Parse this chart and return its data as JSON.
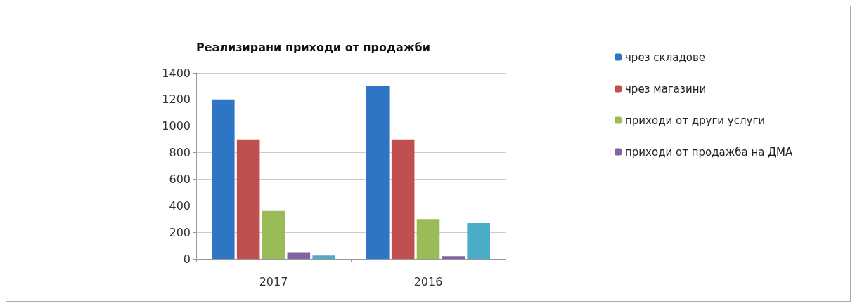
{
  "chart_data": {
    "type": "bar",
    "title": "Реализирани приходи от продажби",
    "categories": [
      "2017",
      "2016"
    ],
    "series": [
      {
        "name": "чрез складове",
        "color": "#2e75c6",
        "values": [
          1200,
          1300
        ]
      },
      {
        "name": "чрез магазини",
        "color": "#c0504d",
        "values": [
          900,
          900
        ]
      },
      {
        "name": "приходи от други услуги",
        "color": "#9bbb59",
        "values": [
          360,
          300
        ]
      },
      {
        "name": "приходи от продажба на ДМА",
        "color": "#8064a2",
        "values": [
          50,
          20
        ]
      },
      {
        "color": "#4bacc6",
        "values": [
          25,
          270
        ]
      }
    ],
    "ylim": [
      0,
      1400
    ],
    "yticks": [
      0,
      200,
      400,
      600,
      800,
      1000,
      1200,
      1400
    ],
    "grid": "y",
    "legend": "right"
  }
}
